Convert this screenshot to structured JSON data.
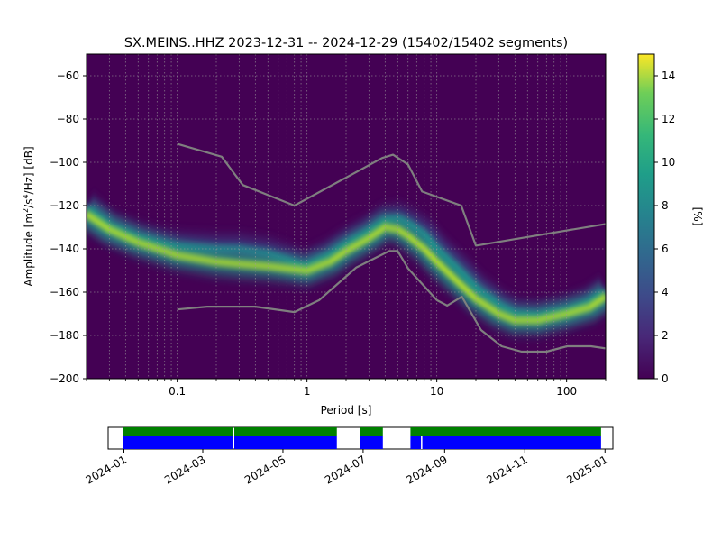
{
  "chart_data": {
    "type": "heatmap",
    "title": "SX.MEINS..HHZ   2023-12-31 -- 2024-12-29  (15402/15402 segments)",
    "xlabel": "Period [s]",
    "ylabel_parts": {
      "pre": "Amplitude [m",
      "exp1": "2",
      "mid": "/s",
      "exp2": "4",
      "post": "/Hz] [dB]"
    },
    "x_scale": "log",
    "xlim": [
      0.02,
      200
    ],
    "ylim": [
      -200,
      -50
    ],
    "x_ticks": [
      {
        "value": 0.1,
        "label": "0.1"
      },
      {
        "value": 1,
        "label": "1"
      },
      {
        "value": 10,
        "label": "10"
      },
      {
        "value": 100,
        "label": "100"
      }
    ],
    "y_ticks": [
      {
        "value": -60,
        "label": "−60"
      },
      {
        "value": -80,
        "label": "−80"
      },
      {
        "value": -100,
        "label": "−100"
      },
      {
        "value": -120,
        "label": "−120"
      },
      {
        "value": -140,
        "label": "−140"
      },
      {
        "value": -160,
        "label": "−160"
      },
      {
        "value": -180,
        "label": "−180"
      },
      {
        "value": -200,
        "label": "−200"
      }
    ],
    "grid": true,
    "colormap": "viridis",
    "colorbar": {
      "label": "[%]",
      "range": [
        0,
        15
      ],
      "ticks": [
        {
          "value": 0,
          "label": "0"
        },
        {
          "value": 2,
          "label": "2"
        },
        {
          "value": 4,
          "label": "4"
        },
        {
          "value": 6,
          "label": "6"
        },
        {
          "value": 8,
          "label": "8"
        },
        {
          "value": 10,
          "label": "10"
        },
        {
          "value": 12,
          "label": "12"
        },
        {
          "value": 14,
          "label": "14"
        }
      ]
    },
    "ridges": [
      {
        "points": [
          [
            0.02,
            -121
          ],
          [
            0.03,
            -130
          ],
          [
            0.05,
            -135
          ],
          [
            0.08,
            -138
          ],
          [
            0.1,
            -139
          ],
          [
            0.2,
            -140
          ],
          [
            0.3,
            -140
          ],
          [
            0.5,
            -142
          ],
          [
            0.7,
            -145
          ],
          [
            0.9,
            -148
          ],
          [
            1.0,
            -148
          ],
          [
            1.5,
            -143
          ],
          [
            2.0,
            -138
          ],
          [
            3.0,
            -132
          ],
          [
            4.0,
            -127
          ],
          [
            5.0,
            -126
          ],
          [
            6.0,
            -128
          ],
          [
            8.0,
            -133
          ],
          [
            10,
            -140
          ],
          [
            15,
            -150
          ],
          [
            20,
            -158
          ],
          [
            30,
            -166
          ],
          [
            40,
            -170
          ],
          [
            60,
            -171
          ],
          [
            100,
            -169
          ],
          [
            150,
            -165
          ],
          [
            200,
            -160
          ]
        ],
        "intensity": 7
      },
      {
        "points": [
          [
            0.02,
            -124
          ],
          [
            0.03,
            -131
          ],
          [
            0.05,
            -137
          ],
          [
            0.08,
            -141
          ],
          [
            0.1,
            -143
          ],
          [
            0.2,
            -146
          ],
          [
            0.3,
            -147
          ],
          [
            0.5,
            -148
          ],
          [
            0.7,
            -149
          ],
          [
            1.0,
            -150
          ],
          [
            1.5,
            -146
          ],
          [
            2.0,
            -141
          ],
          [
            3.0,
            -135
          ],
          [
            4.0,
            -130
          ],
          [
            5.0,
            -131
          ],
          [
            6.0,
            -134
          ],
          [
            8.0,
            -140
          ],
          [
            10,
            -146
          ],
          [
            15,
            -156
          ],
          [
            20,
            -163
          ],
          [
            30,
            -170
          ],
          [
            40,
            -173
          ],
          [
            60,
            -173
          ],
          [
            100,
            -170
          ],
          [
            150,
            -167
          ],
          [
            200,
            -162
          ]
        ],
        "intensity": 14
      }
    ],
    "reference_models": [
      {
        "points": [
          [
            0.1,
            -91.5
          ],
          [
            0.22,
            -97.4
          ],
          [
            0.32,
            -110.5
          ],
          [
            0.8,
            -120.0
          ],
          [
            3.8,
            -98.0
          ],
          [
            4.6,
            -96.5
          ],
          [
            6.0,
            -101.0
          ],
          [
            7.7,
            -113.5
          ],
          [
            15.4,
            -120.0
          ],
          [
            20,
            -138.5
          ],
          [
            200,
            -128.5
          ]
        ]
      },
      {
        "points": [
          [
            0.1,
            -168.0
          ],
          [
            0.17,
            -166.7
          ],
          [
            0.4,
            -166.7
          ],
          [
            0.8,
            -169.2
          ],
          [
            1.24,
            -163.7
          ],
          [
            2.4,
            -148.6
          ],
          [
            4.3,
            -141.0
          ],
          [
            5.0,
            -141.0
          ],
          [
            6.0,
            -149.0
          ],
          [
            10,
            -163.7
          ],
          [
            12,
            -166.2
          ],
          [
            15.6,
            -162.1
          ],
          [
            21.9,
            -177.5
          ],
          [
            31.6,
            -185.0
          ],
          [
            45,
            -187.5
          ],
          [
            70,
            -187.5
          ],
          [
            101,
            -185.0
          ],
          [
            154,
            -185.0
          ],
          [
            200,
            -186.0
          ]
        ]
      }
    ],
    "coverage": {
      "x_ticks": [
        {
          "value": "2024-01",
          "label": "2024-01"
        },
        {
          "value": "2024-03",
          "label": "2024-03"
        },
        {
          "value": "2024-05",
          "label": "2024-05"
        },
        {
          "value": "2024-07",
          "label": "2024-07"
        },
        {
          "value": "2024-09",
          "label": "2024-09"
        },
        {
          "value": "2024-11",
          "label": "2024-11"
        },
        {
          "value": "2025-01",
          "label": "2025-01"
        }
      ],
      "xlim": [
        "2023-12-20",
        "2025-01-07"
      ],
      "segments": [
        [
          "2023-12-31",
          "2024-03-24"
        ],
        [
          "2024-03-25",
          "2024-06-11"
        ],
        [
          "2024-06-29",
          "2024-07-16"
        ],
        [
          "2024-08-06",
          "2024-12-29"
        ]
      ],
      "gaps": [
        "2024-08-14"
      ],
      "colors": {
        "data": "#0000ff",
        "processed": "#008000"
      }
    }
  }
}
